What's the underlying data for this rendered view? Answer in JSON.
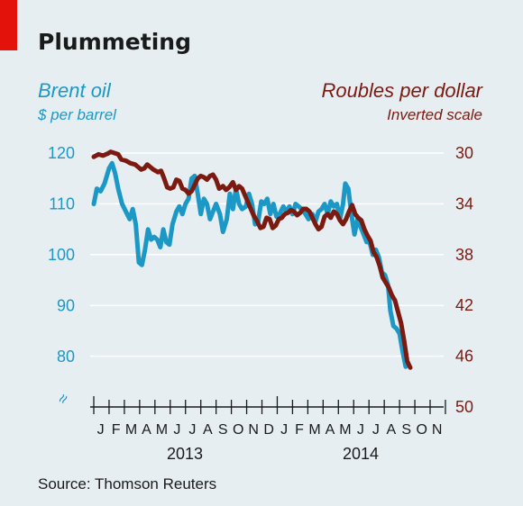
{
  "title": "Plummeting",
  "source": "Source: Thomson Reuters",
  "colors": {
    "brent": "#1b98c6",
    "rouble": "#7a1a10",
    "accent": "#e3120b",
    "background": "#e7eef2",
    "grid": "#ffffff"
  },
  "chart_data": {
    "type": "line",
    "title": "Plummeting",
    "left_axis": {
      "label": "Brent oil",
      "unit": "$ per barrel",
      "ticks": [
        120,
        110,
        100,
        90,
        80
      ],
      "range": [
        75,
        122
      ],
      "broken_axis_symbol": "≈"
    },
    "right_axis": {
      "label": "Roubles per dollar",
      "unit": "Inverted scale",
      "ticks": [
        30,
        34,
        38,
        42,
        46,
        50
      ],
      "range": [
        29.3,
        50
      ],
      "inverted": true
    },
    "x_axis": {
      "months": [
        "J",
        "F",
        "M",
        "A",
        "M",
        "J",
        "J",
        "A",
        "S",
        "O",
        "N",
        "D",
        "J",
        "F",
        "M",
        "A",
        "M",
        "J",
        "J",
        "A",
        "S",
        "O",
        "N"
      ],
      "years": [
        "2013",
        "2014"
      ],
      "range": [
        0,
        23
      ]
    },
    "series": [
      {
        "name": "Brent oil",
        "axis": "left",
        "points": [
          [
            0.0,
            110
          ],
          [
            0.2,
            113
          ],
          [
            0.45,
            112.5
          ],
          [
            0.7,
            114
          ],
          [
            1.0,
            117
          ],
          [
            1.2,
            118
          ],
          [
            1.4,
            116
          ],
          [
            1.6,
            113
          ],
          [
            1.85,
            110
          ],
          [
            2.1,
            108.5
          ],
          [
            2.35,
            107
          ],
          [
            2.55,
            109
          ],
          [
            2.75,
            106
          ],
          [
            2.95,
            98.5
          ],
          [
            3.15,
            98
          ],
          [
            3.35,
            101
          ],
          [
            3.55,
            105
          ],
          [
            3.75,
            103
          ],
          [
            3.95,
            103.5
          ],
          [
            4.15,
            103
          ],
          [
            4.35,
            101.5
          ],
          [
            4.55,
            105
          ],
          [
            4.75,
            102.5
          ],
          [
            4.95,
            102
          ],
          [
            5.15,
            106
          ],
          [
            5.4,
            108.5
          ],
          [
            5.6,
            109.5
          ],
          [
            5.8,
            108
          ],
          [
            6.0,
            110
          ],
          [
            6.2,
            111
          ],
          [
            6.4,
            115
          ],
          [
            6.6,
            115.5
          ],
          [
            6.8,
            112
          ],
          [
            7.0,
            108
          ],
          [
            7.2,
            111
          ],
          [
            7.4,
            110
          ],
          [
            7.6,
            107
          ],
          [
            7.8,
            108.5
          ],
          [
            8.0,
            110
          ],
          [
            8.25,
            108
          ],
          [
            8.45,
            104.5
          ],
          [
            8.7,
            107
          ],
          [
            8.9,
            112
          ],
          [
            9.1,
            109
          ],
          [
            9.3,
            113
          ],
          [
            9.5,
            110
          ],
          [
            9.7,
            109
          ],
          [
            9.95,
            109.5
          ],
          [
            10.15,
            112
          ],
          [
            10.35,
            110
          ],
          [
            10.55,
            106
          ],
          [
            10.75,
            106.5
          ],
          [
            10.95,
            110.5
          ],
          [
            11.15,
            110
          ],
          [
            11.35,
            111
          ],
          [
            11.55,
            108
          ],
          [
            11.75,
            110
          ],
          [
            11.95,
            107.5
          ],
          [
            12.15,
            108
          ],
          [
            12.4,
            109.5
          ],
          [
            12.6,
            108.5
          ],
          [
            12.8,
            109.5
          ],
          [
            13.0,
            108
          ],
          [
            13.2,
            110
          ],
          [
            13.4,
            109.5
          ],
          [
            13.6,
            109
          ],
          [
            13.85,
            108
          ],
          [
            14.05,
            107
          ],
          [
            14.3,
            108
          ],
          [
            14.5,
            106.5
          ],
          [
            14.7,
            108.5
          ],
          [
            14.9,
            109
          ],
          [
            15.1,
            110
          ],
          [
            15.3,
            108
          ],
          [
            15.5,
            110.5
          ],
          [
            15.7,
            109.5
          ],
          [
            15.9,
            110
          ],
          [
            16.1,
            107
          ],
          [
            16.3,
            110
          ],
          [
            16.45,
            114
          ],
          [
            16.65,
            113
          ],
          [
            16.85,
            108
          ],
          [
            17.05,
            104
          ],
          [
            17.25,
            107
          ],
          [
            17.45,
            105.5
          ],
          [
            17.65,
            104
          ],
          [
            17.85,
            102.5
          ],
          [
            18.05,
            102.5
          ],
          [
            18.25,
            100
          ],
          [
            18.45,
            101
          ],
          [
            18.65,
            99.5
          ],
          [
            18.85,
            96.5
          ],
          [
            19.05,
            96
          ],
          [
            19.25,
            94
          ],
          [
            19.4,
            89
          ],
          [
            19.6,
            86
          ],
          [
            19.8,
            85.5
          ],
          [
            20.0,
            84.5
          ],
          [
            20.2,
            81
          ],
          [
            20.4,
            78
          ]
        ]
      },
      {
        "name": "Roubles per dollar",
        "axis": "right",
        "points": [
          [
            0.0,
            30.3
          ],
          [
            0.3,
            30.1
          ],
          [
            0.6,
            30.2
          ],
          [
            0.9,
            30.05
          ],
          [
            1.1,
            29.9
          ],
          [
            1.35,
            30.0
          ],
          [
            1.6,
            30.1
          ],
          [
            1.8,
            30.5
          ],
          [
            2.1,
            30.6
          ],
          [
            2.4,
            30.8
          ],
          [
            2.7,
            30.9
          ],
          [
            2.9,
            31.1
          ],
          [
            3.1,
            31.3
          ],
          [
            3.3,
            31.2
          ],
          [
            3.5,
            30.9
          ],
          [
            3.7,
            31.1
          ],
          [
            3.9,
            31.3
          ],
          [
            4.2,
            31.5
          ],
          [
            4.4,
            31.4
          ],
          [
            4.6,
            32.0
          ],
          [
            4.8,
            32.7
          ],
          [
            5.0,
            32.8
          ],
          [
            5.2,
            32.7
          ],
          [
            5.4,
            32.1
          ],
          [
            5.6,
            32.2
          ],
          [
            5.8,
            32.8
          ],
          [
            6.0,
            32.9
          ],
          [
            6.2,
            33.2
          ],
          [
            6.4,
            33.0
          ],
          [
            6.6,
            32.5
          ],
          [
            6.8,
            32.0
          ],
          [
            7.0,
            31.8
          ],
          [
            7.2,
            31.9
          ],
          [
            7.4,
            32.1
          ],
          [
            7.6,
            31.8
          ],
          [
            7.8,
            31.7
          ],
          [
            8.0,
            32.1
          ],
          [
            8.2,
            32.8
          ],
          [
            8.45,
            32.6
          ],
          [
            8.65,
            32.9
          ],
          [
            8.85,
            32.7
          ],
          [
            9.1,
            32.3
          ],
          [
            9.3,
            32.9
          ],
          [
            9.5,
            32.6
          ],
          [
            9.7,
            32.8
          ],
          [
            9.95,
            33.5
          ],
          [
            10.2,
            34.2
          ],
          [
            10.45,
            34.9
          ],
          [
            10.65,
            35.3
          ],
          [
            10.9,
            35.9
          ],
          [
            11.1,
            35.8
          ],
          [
            11.3,
            35.1
          ],
          [
            11.5,
            35.2
          ],
          [
            11.7,
            35.9
          ],
          [
            11.9,
            35.7
          ],
          [
            12.1,
            35.2
          ],
          [
            12.3,
            35.1
          ],
          [
            12.5,
            34.8
          ],
          [
            12.7,
            34.7
          ],
          [
            12.9,
            34.5
          ],
          [
            13.1,
            34.6
          ],
          [
            13.3,
            34.9
          ],
          [
            13.5,
            34.7
          ],
          [
            13.7,
            34.4
          ],
          [
            13.9,
            34.4
          ],
          [
            14.1,
            34.6
          ],
          [
            14.3,
            35.1
          ],
          [
            14.5,
            35.6
          ],
          [
            14.7,
            36.0
          ],
          [
            14.9,
            35.8
          ],
          [
            15.1,
            35.0
          ],
          [
            15.3,
            34.8
          ],
          [
            15.5,
            35.1
          ],
          [
            15.7,
            34.6
          ],
          [
            15.9,
            34.8
          ],
          [
            16.1,
            35.3
          ],
          [
            16.3,
            35.6
          ],
          [
            16.5,
            35.2
          ],
          [
            16.7,
            34.6
          ],
          [
            16.9,
            34.1
          ],
          [
            17.1,
            34.8
          ],
          [
            17.3,
            35.1
          ],
          [
            17.5,
            35.3
          ],
          [
            17.7,
            36.0
          ],
          [
            17.9,
            36.5
          ],
          [
            18.1,
            36.9
          ],
          [
            18.3,
            37.8
          ],
          [
            18.5,
            38.2
          ],
          [
            18.7,
            38.9
          ],
          [
            18.9,
            39.8
          ],
          [
            19.1,
            40.2
          ],
          [
            19.3,
            40.6
          ],
          [
            19.5,
            41.2
          ],
          [
            19.7,
            41.6
          ],
          [
            19.9,
            42.5
          ],
          [
            20.1,
            43.4
          ],
          [
            20.3,
            44.8
          ],
          [
            20.5,
            46.4
          ],
          [
            20.7,
            46.9
          ]
        ]
      }
    ]
  }
}
